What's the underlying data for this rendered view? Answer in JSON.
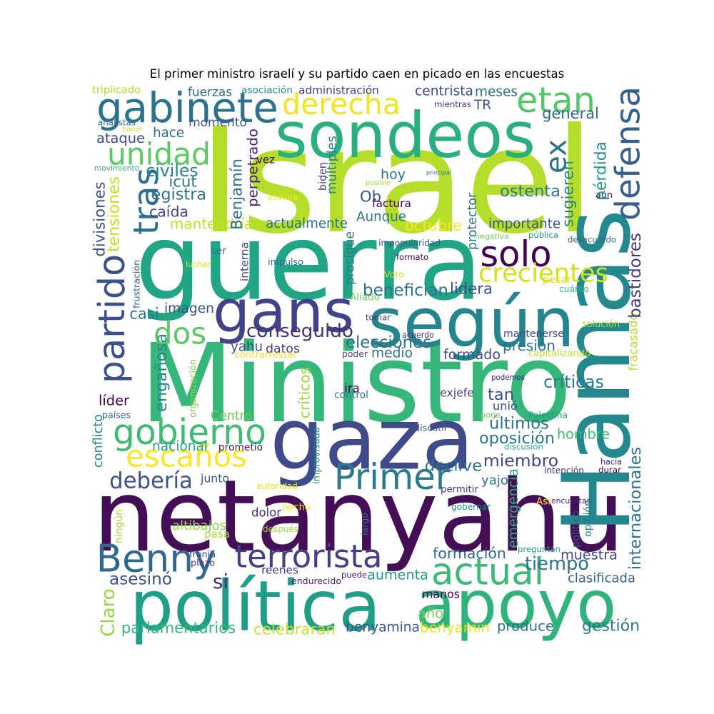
{
  "title": "El primer ministro israelí y su partido caen en picado en las encuestas",
  "words": [
    {
      "text": "Israel",
      "color": "#b5de2b"
    },
    {
      "text": "netanyahu",
      "color": "#440f56"
    },
    {
      "text": "Ministro",
      "color": "#35b779"
    },
    {
      "text": "guerra",
      "color": "#21a685"
    },
    {
      "text": "gaza",
      "color": "#3e4a89"
    },
    {
      "text": "Hamas",
      "color": "#23898e"
    },
    {
      "text": "sondeos",
      "color": "#2ab07f"
    },
    {
      "text": "política",
      "color": "#1f9f88"
    },
    {
      "text": "apoyo",
      "color": "#2eb37c"
    },
    {
      "text": "según",
      "color": "#25858e"
    },
    {
      "text": "gans",
      "color": "#414287"
    },
    {
      "text": "gabinete",
      "color": "#2c718e"
    },
    {
      "text": "derecha",
      "color": "#f1e51d"
    },
    {
      "text": "etan",
      "color": "#54c568"
    },
    {
      "text": "defensa",
      "color": "#355f8d"
    },
    {
      "text": "ex",
      "color": "#2d708e"
    },
    {
      "text": "unidad",
      "color": "#5ec962"
    },
    {
      "text": "tras",
      "color": "#2e6e8e"
    },
    {
      "text": "partido",
      "color": "#3b518b"
    },
    {
      "text": "solo",
      "color": "#440154"
    },
    {
      "text": "crecientes",
      "color": "#d2e21b"
    },
    {
      "text": "dos",
      "color": "#5ec962"
    },
    {
      "text": "gobierno",
      "color": "#3dbc74"
    },
    {
      "text": "escaños",
      "color": "#fde725"
    },
    {
      "text": "Primer",
      "color": "#297a8e"
    },
    {
      "text": "Benny",
      "color": "#31688e"
    },
    {
      "text": "terrorista",
      "color": "#433e85"
    },
    {
      "text": "actual",
      "color": "#3aba76"
    },
    {
      "text": "conseguido",
      "color": "#46337e"
    },
    {
      "text": "miembro",
      "color": "#414487"
    },
    {
      "text": "debería",
      "color": "#3b528b"
    },
    {
      "text": "tiempo",
      "color": "#2c728e"
    },
    {
      "text": "formación",
      "color": "#31688e"
    },
    {
      "text": "muestra",
      "color": "#3e4989"
    },
    {
      "text": "aumenta",
      "color": "#1f9a8a"
    },
    {
      "text": "asesinó",
      "color": "#3b528b"
    },
    {
      "text": "si",
      "color": "#482878"
    },
    {
      "text": "Claro",
      "color": "#95d840"
    },
    {
      "text": "parlamentarios",
      "color": "#35b779"
    },
    {
      "text": "celebraran",
      "color": "#cde11d"
    },
    {
      "text": "benyamina",
      "color": "#3a548c"
    },
    {
      "text": "benyamin",
      "color": "#eae51a"
    },
    {
      "text": "produce",
      "color": "#2c718e"
    },
    {
      "text": "gestión",
      "color": "#2a788e"
    },
    {
      "text": "año",
      "color": "#73d055"
    },
    {
      "text": "clasificada",
      "color": "#33638d"
    },
    {
      "text": "manos",
      "color": "#440154"
    },
    {
      "text": "reenes",
      "color": "#46327e"
    },
    {
      "text": "endurecido",
      "color": "#48186a"
    },
    {
      "text": "puede",
      "color": "#481a6c"
    },
    {
      "text": "plazo",
      "color": "#472d7b"
    },
    {
      "text": "franja",
      "color": "#3e4989"
    },
    {
      "text": "preguntan",
      "color": "#1fa187"
    },
    {
      "text": "pasa",
      "color": "#a5db36"
    },
    {
      "text": "altibajos",
      "color": "#95d840"
    },
    {
      "text": "después",
      "color": "#9fda3a"
    },
    {
      "text": "largo",
      "color": "#2a788e"
    },
    {
      "text": "hecho",
      "color": "#fde725"
    },
    {
      "text": "dolor",
      "color": "#472d7b"
    },
    {
      "text": "gobernar",
      "color": "#1f968b"
    },
    {
      "text": "ningún",
      "color": "#a8db34"
    },
    {
      "text": "autoridad",
      "color": "#eae51a"
    },
    {
      "text": "Así",
      "color": "#fde725"
    },
    {
      "text": "encuestas",
      "color": "#482576"
    },
    {
      "text": "político",
      "color": "#3b528b"
    },
    {
      "text": "opinión",
      "color": "#2b748e"
    },
    {
      "text": "internacionales",
      "color": "#2c718e"
    },
    {
      "text": "emergencia",
      "color": "#2ab07f"
    },
    {
      "text": "yajo",
      "color": "#2d708e"
    },
    {
      "text": "declive",
      "color": "#2c728e"
    },
    {
      "text": "junto",
      "color": "#39558c"
    },
    {
      "text": "permitir",
      "color": "#453781"
    },
    {
      "text": "intención",
      "color": "#472d7b"
    },
    {
      "text": "hacia",
      "color": "#472c7a"
    },
    {
      "text": "durar",
      "color": "#440154"
    },
    {
      "text": "discusión",
      "color": "#25ab82"
    },
    {
      "text": "hombre",
      "color": "#3dbc74"
    },
    {
      "text": "oposición",
      "color": "#2a768e"
    },
    {
      "text": "últimos",
      "color": "#2d718e"
    },
    {
      "text": "Palestina",
      "color": "#1f948c"
    },
    {
      "text": "pone",
      "color": "#6ece58"
    },
    {
      "text": "discutir",
      "color": "#3d4e8a"
    },
    {
      "text": "improvisada",
      "color": "#218f8d"
    },
    {
      "text": "prometió",
      "color": "#481668"
    },
    {
      "text": "nacional",
      "color": "#1fa187"
    },
    {
      "text": "Centro",
      "color": "#6ece58"
    },
    {
      "text": "unió",
      "color": "#3e4c8a"
    },
    {
      "text": "tan",
      "color": "#3b528b"
    },
    {
      "text": "podemos",
      "color": "#482071"
    },
    {
      "text": "exjefe",
      "color": "#414287"
    },
    {
      "text": "críticas",
      "color": "#2a788e"
    },
    {
      "text": "líder",
      "color": "#440154"
    },
    {
      "text": "países",
      "color": "#31688e"
    },
    {
      "text": "conflicto",
      "color": "#25858e"
    },
    {
      "text": "ira",
      "color": "#440154"
    },
    {
      "text": "control",
      "color": "#287c8e"
    },
    {
      "text": "críticos",
      "color": "#9bd93c"
    },
    {
      "text": "organización",
      "color": "#87d549"
    },
    {
      "text": "engañosa",
      "color": "#23888e"
    },
    {
      "text": "formado",
      "color": "#3e4a89"
    },
    {
      "text": "medio",
      "color": "#2c718e"
    },
    {
      "text": "poder",
      "color": "#414487"
    },
    {
      "text": "datos",
      "color": "#424186"
    },
    {
      "text": "yahu",
      "color": "#39568c"
    },
    {
      "text": "elecciones",
      "color": "#2d718e"
    },
    {
      "text": "presión",
      "color": "#2c738e"
    },
    {
      "text": "mantenerse",
      "color": "#404588"
    },
    {
      "text": "capitalizando",
      "color": "#c2df23"
    },
    {
      "text": "contrarrestar",
      "color": "#f1e51d"
    },
    {
      "text": "acuerdo",
      "color": "#472d7b"
    },
    {
      "text": "solución",
      "color": "#b8de29"
    },
    {
      "text": "fracasado",
      "color": "#c0df25"
    },
    {
      "text": "imagen",
      "color": "#3b528b"
    },
    {
      "text": "casi",
      "color": "#2a788e"
    },
    {
      "text": "frustración",
      "color": "#31688e"
    },
    {
      "text": "tensiones",
      "color": "#c8e020"
    },
    {
      "text": "divisiones",
      "color": "#3b528b"
    },
    {
      "text": "lidera",
      "color": "#3d4d8a"
    },
    {
      "text": "pesar",
      "color": "#dde318"
    },
    {
      "text": "benefician",
      "color": "#2c738e"
    },
    {
      "text": "tomar",
      "color": "#453882"
    },
    {
      "text": "Aliado",
      "color": "#6ece58"
    },
    {
      "text": "cuánto",
      "color": "#35b779"
    },
    {
      "text": "Voto",
      "color": "#dde318"
    },
    {
      "text": "bastidores",
      "color": "#453882"
    },
    {
      "text": "octubre",
      "color": "#fde725"
    },
    {
      "text": "importante",
      "color": "#3c508b"
    },
    {
      "text": "actualmente",
      "color": "#2d708e"
    },
    {
      "text": "Aunque",
      "color": "#2a788e"
    },
    {
      "text": "Ob",
      "color": "#3b528b"
    },
    {
      "text": "mantendría",
      "color": "#c2df23"
    },
    {
      "text": "prosigue",
      "color": "#2a788e"
    },
    {
      "text": "impopularidad",
      "color": "#3b528b"
    },
    {
      "text": "formato",
      "color": "#440154"
    },
    {
      "text": "impulso",
      "color": "#31688e"
    },
    {
      "text": "interna",
      "color": "#3e4a89"
    },
    {
      "text": "ser",
      "color": "#2a788e"
    },
    {
      "text": "luchar",
      "color": "#dde318"
    },
    {
      "text": "protector",
      "color": "#2d708e"
    },
    {
      "text": "negativa",
      "color": "#6ece58"
    },
    {
      "text": "pública",
      "color": "#1f968b"
    },
    {
      "text": "desacuerdo",
      "color": "#31688e"
    },
    {
      "text": "aún",
      "color": "#440154"
    },
    {
      "text": "ostenta",
      "color": "#2a788e"
    },
    {
      "text": "sugieren",
      "color": "#26828e"
    },
    {
      "text": "pérdida",
      "color": "#1f968b"
    },
    {
      "text": "general",
      "color": "#31688e"
    },
    {
      "text": "meses",
      "color": "#2c738e"
    },
    {
      "text": "TR",
      "color": "#3b528b"
    },
    {
      "text": "mientras",
      "color": "#472d7b"
    },
    {
      "text": "centrista",
      "color": "#3e4a89"
    },
    {
      "text": "administración",
      "color": "#453781"
    },
    {
      "text": "asociación",
      "color": "#20928c"
    },
    {
      "text": "fuerzas",
      "color": "#2c718e"
    },
    {
      "text": "triplicado",
      "color": "#b5de2b"
    },
    {
      "text": "analistas",
      "color": "#31688e"
    },
    {
      "text": "hacer",
      "color": "#c2df23"
    },
    {
      "text": "movimiento",
      "color": "#35b779"
    },
    {
      "text": "ataque",
      "color": "#3e4a89"
    },
    {
      "text": "hace",
      "color": "#2c718e"
    },
    {
      "text": "momento",
      "color": "#39558c"
    },
    {
      "text": "vez",
      "color": "#440154"
    },
    {
      "text": "perpetrado",
      "color": "#482071"
    },
    {
      "text": "Benjamín",
      "color": "#2c718e"
    },
    {
      "text": "civiles",
      "color": "#25858e"
    },
    {
      "text": "icut",
      "color": "#2c718e"
    },
    {
      "text": "registra",
      "color": "#2c718e"
    },
    {
      "text": "caída",
      "color": "#414487"
    },
    {
      "text": "postura",
      "color": "#fde725"
    },
    {
      "text": "biden",
      "color": "#453781"
    },
    {
      "text": "múltiples",
      "color": "#25858e"
    },
    {
      "text": "posible",
      "color": "#a8db34"
    },
    {
      "text": "principal",
      "color": "#31688e"
    },
    {
      "text": "hoy",
      "color": "#2d708e"
    },
    {
      "text": "factura",
      "color": "#440154"
    }
  ]
}
